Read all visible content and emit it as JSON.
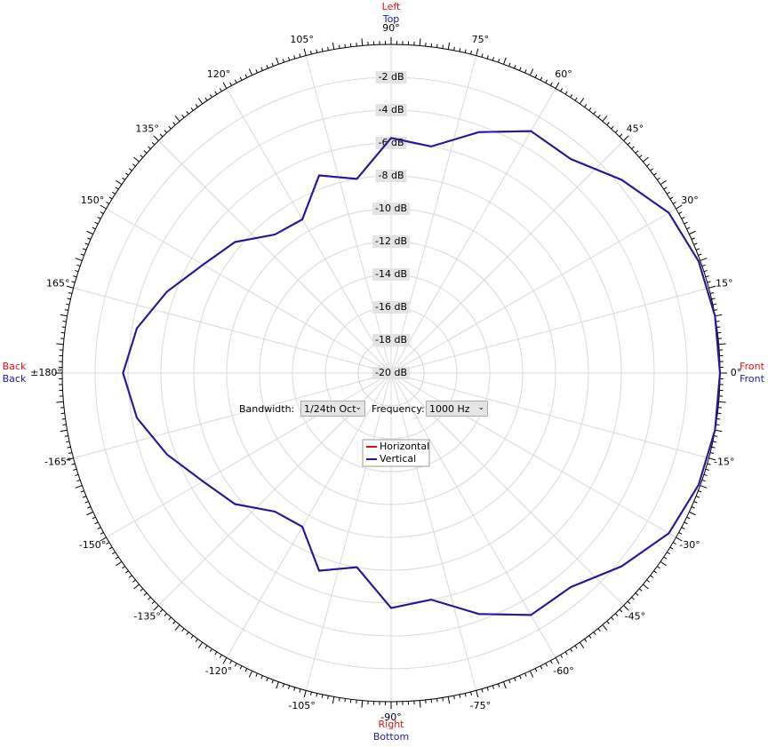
{
  "chart_data": {
    "type": "polar",
    "theta": [
      0,
      10,
      20,
      30,
      40,
      50,
      60,
      70,
      80,
      90,
      100,
      110,
      120,
      130,
      140,
      150,
      160,
      170,
      180,
      190,
      200,
      210,
      220,
      230,
      240,
      250,
      260,
      270,
      280,
      290,
      300,
      310,
      320,
      330,
      340,
      350
    ],
    "series": [
      {
        "name": "Horizontal",
        "color": "#e01010",
        "values": [
          0,
          0,
          -0.1,
          -0.5,
          -1.7,
          -3,
          -3,
          -4.4,
          -6,
          -5.7,
          -8,
          -7.2,
          -9.2,
          -9,
          -7.6,
          -6.8,
          -5.5,
          -4.3,
          -3.7,
          -4.3,
          -5.5,
          -6.8,
          -7.6,
          -9,
          -9.2,
          -7.2,
          -8,
          -5.7,
          -6,
          -4.4,
          -3,
          -3,
          -1.7,
          -0.5,
          -0.1,
          0
        ]
      },
      {
        "name": "Vertical",
        "color": "#1a1aa6",
        "values": [
          0,
          0,
          -0.1,
          -0.5,
          -1.7,
          -3,
          -3,
          -4.4,
          -6,
          -5.7,
          -8,
          -7.2,
          -9.2,
          -9,
          -7.6,
          -6.8,
          -5.5,
          -4.3,
          -3.7,
          -4.3,
          -5.5,
          -6.8,
          -7.6,
          -9,
          -9.2,
          -7.2,
          -8,
          -5.7,
          -6,
          -4.4,
          -3,
          -3,
          -1.7,
          -0.5,
          -0.1,
          0
        ]
      }
    ],
    "rlim": [
      -20,
      0
    ],
    "rticks": [
      {
        "value": -2,
        "label": "-2 dB"
      },
      {
        "value": -4,
        "label": "-4 dB"
      },
      {
        "value": -6,
        "label": "-6 dB"
      },
      {
        "value": -8,
        "label": "-8 dB"
      },
      {
        "value": -10,
        "label": "-10 dB"
      },
      {
        "value": -12,
        "label": "-12 dB"
      },
      {
        "value": -14,
        "label": "-14 dB"
      },
      {
        "value": -16,
        "label": "-16 dB"
      },
      {
        "value": -18,
        "label": "-18 dB"
      },
      {
        "value": -20,
        "label": "-20 dB"
      }
    ],
    "thetaticks": [
      {
        "value": 0,
        "label": "0°"
      },
      {
        "value": 15,
        "label": "15°"
      },
      {
        "value": 30,
        "label": "30°"
      },
      {
        "value": 45,
        "label": "45°"
      },
      {
        "value": 60,
        "label": "60°"
      },
      {
        "value": 75,
        "label": "75°"
      },
      {
        "value": 90,
        "label": "90°"
      },
      {
        "value": 105,
        "label": "105°"
      },
      {
        "value": 120,
        "label": "120°"
      },
      {
        "value": 135,
        "label": "135°"
      },
      {
        "value": 150,
        "label": "150°"
      },
      {
        "value": 165,
        "label": "165°"
      },
      {
        "value": 180,
        "label": "±180°"
      },
      {
        "value": -165,
        "label": "-165°"
      },
      {
        "value": -150,
        "label": "-150°"
      },
      {
        "value": -135,
        "label": "-135°"
      },
      {
        "value": -120,
        "label": "-120°"
      },
      {
        "value": -105,
        "label": "-105°"
      },
      {
        "value": -90,
        "label": "-90°"
      },
      {
        "value": -75,
        "label": "-75°"
      },
      {
        "value": -60,
        "label": "-60°"
      },
      {
        "value": -45,
        "label": "-45°"
      },
      {
        "value": -30,
        "label": "-30°"
      },
      {
        "value": -15,
        "label": "-15°"
      }
    ],
    "grid": true,
    "minor_ticks": true,
    "legend": "center",
    "direction_labels": {
      "top": [
        "Left",
        "Top"
      ],
      "bottom": [
        "Right",
        "Bottom"
      ],
      "left": [
        "Back",
        "Back"
      ],
      "right": [
        "Front",
        "Front"
      ]
    }
  },
  "controls": {
    "bandwidth_label": "Bandwidth:",
    "bandwidth_value": "1/24th Oct",
    "frequency_label": "Frequency:",
    "frequency_value": "1000 Hz"
  }
}
